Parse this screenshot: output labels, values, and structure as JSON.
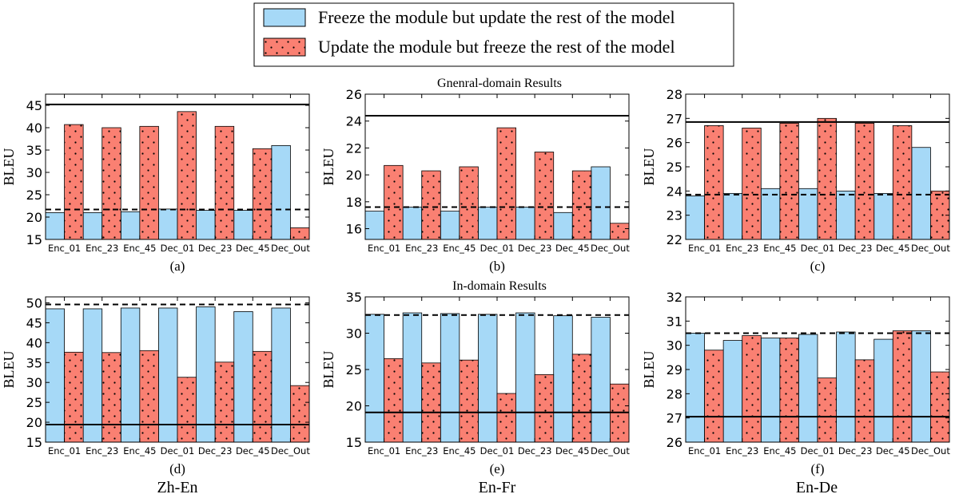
{
  "legend": {
    "items": [
      {
        "label": "Freeze the module but update the rest of the model",
        "color": "#a6d9f7",
        "pattern": "solid"
      },
      {
        "label": "Update the module but freeze the rest of the model",
        "color": "#fa8072",
        "pattern": "dots"
      }
    ]
  },
  "row_titles": [
    "Gnenral-domain Results",
    "In-domain Results"
  ],
  "column_titles": [
    "Zh-En",
    "En-Fr",
    "En-De"
  ],
  "chart_data": [
    {
      "type": "bar",
      "panel_label": "(a)",
      "row": 0,
      "col": 0,
      "ylabel": "BLEU",
      "ylim": [
        15,
        47.5
      ],
      "yticks": [
        15,
        20,
        25,
        30,
        35,
        40,
        45
      ],
      "categories": [
        "Enc_01",
        "Enc_23",
        "Enc_45",
        "Dec_01",
        "Dec_23",
        "Dec_45",
        "Dec_Out"
      ],
      "series": [
        {
          "name": "Freeze the module but update the rest of the model",
          "values": [
            21.0,
            21.0,
            21.2,
            21.8,
            21.5,
            21.5,
            36.0
          ]
        },
        {
          "name": "Update the module but freeze the rest of the model",
          "values": [
            40.7,
            40.0,
            40.3,
            43.6,
            40.3,
            35.3,
            17.6
          ]
        }
      ],
      "ref_lines": [
        {
          "style": "solid",
          "value": 45.2
        },
        {
          "style": "dashed",
          "value": 21.7
        }
      ]
    },
    {
      "type": "bar",
      "panel_label": "(b)",
      "row": 0,
      "col": 1,
      "ylabel": "BLEU",
      "ylim": [
        15.2,
        26
      ],
      "yticks": [
        16,
        18,
        20,
        22,
        24,
        26
      ],
      "categories": [
        "Enc_01",
        "Enc_23",
        "Enc_45",
        "Dec_01",
        "Dec_23",
        "Dec_45",
        "Dec_Out"
      ],
      "series": [
        {
          "name": "Freeze the module but update the rest of the model",
          "values": [
            17.3,
            17.6,
            17.3,
            17.6,
            17.6,
            17.2,
            20.6
          ]
        },
        {
          "name": "Update the module but freeze the rest of the model",
          "values": [
            20.7,
            20.3,
            20.6,
            23.5,
            21.7,
            20.3,
            16.4
          ]
        }
      ],
      "ref_lines": [
        {
          "style": "solid",
          "value": 24.4
        },
        {
          "style": "dashed",
          "value": 17.6
        }
      ]
    },
    {
      "type": "bar",
      "panel_label": "(c)",
      "row": 0,
      "col": 2,
      "ylabel": "BLEU",
      "ylim": [
        22,
        28
      ],
      "yticks": [
        22,
        23,
        24,
        25,
        26,
        27,
        28
      ],
      "categories": [
        "Enc_01",
        "Enc_23",
        "Enc_45",
        "Dec_01",
        "Dec_23",
        "Dec_45",
        "Dec_Out"
      ],
      "series": [
        {
          "name": "Freeze the module but update the rest of the model",
          "values": [
            23.8,
            23.9,
            24.1,
            24.1,
            24.0,
            23.9,
            25.8
          ]
        },
        {
          "name": "Update the module but freeze the rest of the model",
          "values": [
            26.7,
            26.6,
            26.8,
            27.0,
            26.8,
            26.7,
            24.0
          ]
        }
      ],
      "ref_lines": [
        {
          "style": "solid",
          "value": 26.85
        },
        {
          "style": "dashed",
          "value": 23.85
        }
      ]
    },
    {
      "type": "bar",
      "panel_label": "(d)",
      "row": 1,
      "col": 0,
      "ylabel": "BLEU",
      "ylim": [
        15,
        51.5
      ],
      "yticks": [
        15,
        20,
        25,
        30,
        35,
        40,
        45,
        50
      ],
      "categories": [
        "Enc_01",
        "Enc_23",
        "Enc_45",
        "Dec_01",
        "Dec_23",
        "Dec_45",
        "Dec_Out"
      ],
      "series": [
        {
          "name": "Freeze the module but update the rest of the model",
          "values": [
            48.5,
            48.5,
            48.7,
            48.7,
            49.0,
            47.8,
            48.7
          ]
        },
        {
          "name": "Update the module but freeze the rest of the model",
          "values": [
            37.6,
            37.5,
            38.0,
            31.3,
            35.1,
            37.8,
            29.2
          ]
        }
      ],
      "ref_lines": [
        {
          "style": "solid",
          "value": 19.4
        },
        {
          "style": "dashed",
          "value": 49.6
        }
      ]
    },
    {
      "type": "bar",
      "panel_label": "(e)",
      "row": 1,
      "col": 1,
      "ylabel": "BLEU",
      "ylim": [
        15,
        35
      ],
      "yticks": [
        15,
        20,
        25,
        30,
        35
      ],
      "categories": [
        "Enc_01",
        "Enc_23",
        "Enc_45",
        "Dec_01",
        "Dec_23",
        "Dec_45",
        "Dec_Out"
      ],
      "series": [
        {
          "name": "Freeze the module but update the rest of the model",
          "values": [
            32.6,
            32.8,
            32.7,
            32.6,
            32.8,
            32.4,
            32.2
          ]
        },
        {
          "name": "Update the module but freeze the rest of the model",
          "values": [
            26.5,
            25.9,
            26.3,
            21.7,
            24.3,
            27.1,
            23.0
          ]
        }
      ],
      "ref_lines": [
        {
          "style": "solid",
          "value": 19.1
        },
        {
          "style": "dashed",
          "value": 32.5
        }
      ]
    },
    {
      "type": "bar",
      "panel_label": "(f)",
      "row": 1,
      "col": 2,
      "ylabel": "BLEU",
      "ylim": [
        26,
        32
      ],
      "yticks": [
        26,
        27,
        28,
        29,
        30,
        31,
        32
      ],
      "categories": [
        "Enc_01",
        "Enc_23",
        "Enc_45",
        "Dec_01",
        "Dec_23",
        "Dec_45",
        "Dec_Out"
      ],
      "series": [
        {
          "name": "Freeze the module but update the rest of the model",
          "values": [
            30.5,
            30.2,
            30.3,
            30.45,
            30.55,
            30.25,
            30.6
          ]
        },
        {
          "name": "Update the module but freeze the rest of the model",
          "values": [
            29.8,
            30.4,
            30.3,
            28.65,
            29.4,
            30.6,
            28.9
          ]
        }
      ],
      "ref_lines": [
        {
          "style": "solid",
          "value": 27.05
        },
        {
          "style": "dashed",
          "value": 30.5
        }
      ]
    }
  ]
}
